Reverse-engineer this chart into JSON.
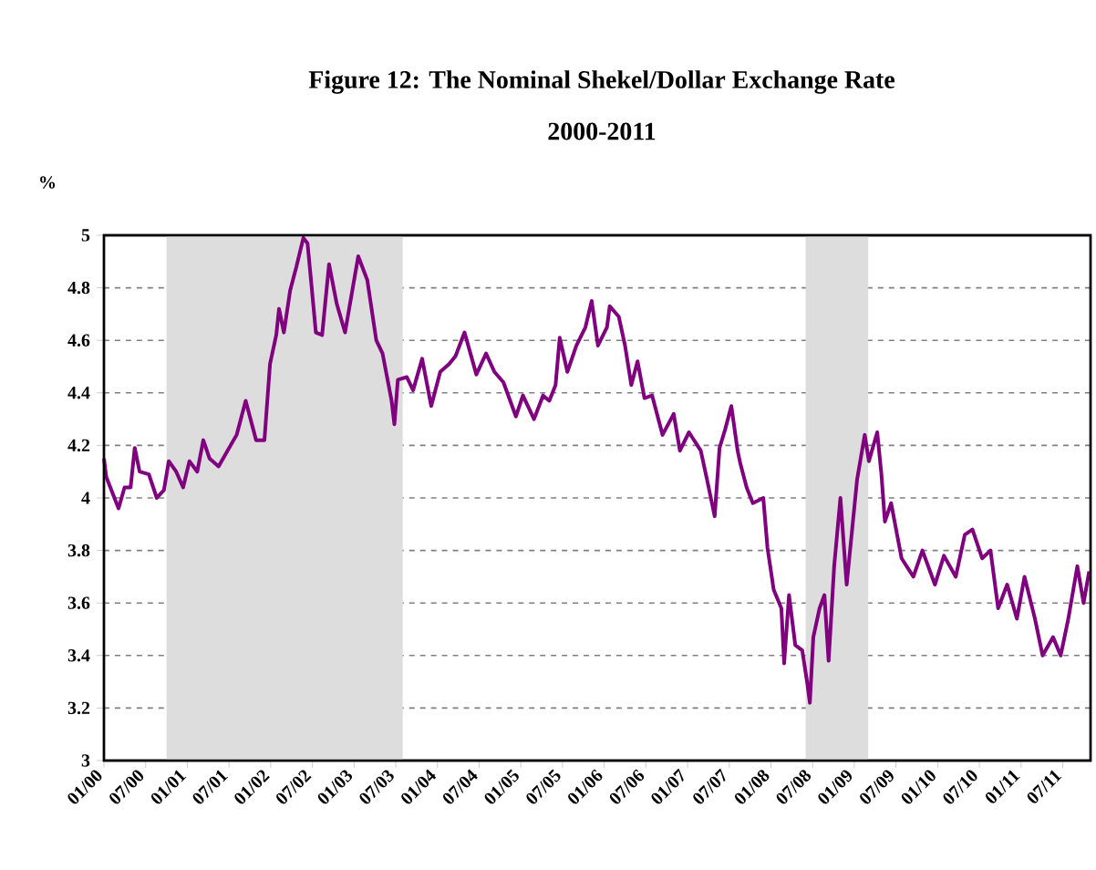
{
  "chart_data": {
    "type": "line",
    "title": "Figure 12: The Nominal Shekel/Dollar Exchange Rate",
    "subtitle": "2000-2011",
    "ylabel": "%",
    "x": [
      "2000-01-01",
      "2000-01-11",
      "2000-03-04",
      "2000-03-30",
      "2000-04-26",
      "2000-05-14",
      "2000-06-05",
      "2000-07-15",
      "2000-08-19",
      "2000-09-20",
      "2000-10-11",
      "2000-11-13",
      "2000-12-13",
      "2001-01-10",
      "2001-02-14",
      "2001-03-10",
      "2001-04-07",
      "2001-05-16",
      "2001-08-04",
      "2001-09-13",
      "2001-10-28",
      "2001-12-04",
      "2001-12-28",
      "2002-01-25",
      "2002-02-07",
      "2002-02-28",
      "2002-03-25",
      "2002-04-22",
      "2002-05-22",
      "2002-06-10",
      "2002-06-25",
      "2002-07-16",
      "2002-08-13",
      "2002-09-13",
      "2002-10-16",
      "2002-11-22",
      "2003-01-19",
      "2003-02-28",
      "2003-04-07",
      "2003-05-04",
      "2003-06-13",
      "2003-06-25",
      "2003-07-10",
      "2003-08-19",
      "2003-09-16",
      "2003-10-25",
      "2003-12-04",
      "2004-01-13",
      "2004-02-22",
      "2004-03-19",
      "2004-04-28",
      "2004-06-19",
      "2004-08-01",
      "2004-09-07",
      "2004-10-16",
      "2004-12-10",
      "2005-01-10",
      "2005-02-28",
      "2005-04-07",
      "2005-05-04",
      "2005-06-01",
      "2005-06-19",
      "2005-07-22",
      "2005-09-01",
      "2005-10-10",
      "2005-11-07",
      "2005-12-04",
      "2006-01-13",
      "2006-01-25",
      "2006-03-04",
      "2006-04-01",
      "2006-04-28",
      "2006-05-25",
      "2006-06-25",
      "2006-07-28",
      "2006-09-13",
      "2006-11-01",
      "2006-11-28",
      "2007-01-07",
      "2007-02-28",
      "2007-03-25",
      "2007-04-28",
      "2007-05-19",
      "2007-06-13",
      "2007-07-10",
      "2007-08-07",
      "2007-08-19",
      "2007-09-16",
      "2007-10-13",
      "2007-11-28",
      "2007-12-16",
      "2008-01-13",
      "2008-02-16",
      "2008-02-28",
      "2008-03-19",
      "2008-04-16",
      "2008-05-16",
      "2008-06-07",
      "2008-06-19",
      "2008-07-04",
      "2008-08-01",
      "2008-08-22",
      "2008-09-10",
      "2008-10-04",
      "2008-11-01",
      "2008-11-28",
      "2008-12-25",
      "2009-01-13",
      "2009-02-16",
      "2009-03-04",
      "2009-04-10",
      "2009-04-28",
      "2009-05-13",
      "2009-06-10",
      "2009-07-25",
      "2009-09-16",
      "2009-10-25",
      "2009-12-19",
      "2010-01-28",
      "2010-03-19",
      "2010-04-28",
      "2010-06-01",
      "2010-07-13",
      "2010-08-19",
      "2010-09-22",
      "2010-11-01",
      "2010-12-13",
      "2011-01-16",
      "2011-03-01",
      "2011-04-04",
      "2011-05-19",
      "2011-06-22",
      "2011-07-25",
      "2011-09-04",
      "2011-10-01",
      "2011-10-25"
    ],
    "series": [
      {
        "color": "#800080",
        "values": [
          4.15,
          4.08,
          3.96,
          4.04,
          4.04,
          4.19,
          4.1,
          4.09,
          4.0,
          4.03,
          4.14,
          4.1,
          4.04,
          4.14,
          4.1,
          4.22,
          4.15,
          4.12,
          4.24,
          4.37,
          4.22,
          4.22,
          4.51,
          4.62,
          4.72,
          4.63,
          4.79,
          4.88,
          4.99,
          4.97,
          4.83,
          4.63,
          4.62,
          4.89,
          4.74,
          4.63,
          4.92,
          4.83,
          4.6,
          4.55,
          4.37,
          4.28,
          4.45,
          4.46,
          4.41,
          4.53,
          4.35,
          4.48,
          4.51,
          4.54,
          4.63,
          4.47,
          4.55,
          4.48,
          4.44,
          4.31,
          4.39,
          4.3,
          4.39,
          4.37,
          4.43,
          4.61,
          4.48,
          4.58,
          4.65,
          4.75,
          4.58,
          4.65,
          4.73,
          4.69,
          4.58,
          4.43,
          4.52,
          4.38,
          4.39,
          4.24,
          4.32,
          4.18,
          4.25,
          4.18,
          4.07,
          3.93,
          4.19,
          4.26,
          4.35,
          4.18,
          4.13,
          4.04,
          3.98,
          4.0,
          3.81,
          3.65,
          3.58,
          3.37,
          3.63,
          3.44,
          3.42,
          3.3,
          3.22,
          3.47,
          3.58,
          3.63,
          3.38,
          3.74,
          4.0,
          3.67,
          3.91,
          4.07,
          4.24,
          4.14,
          4.25,
          4.09,
          3.91,
          3.98,
          3.77,
          3.7,
          3.8,
          3.67,
          3.78,
          3.7,
          3.86,
          3.88,
          3.77,
          3.8,
          3.58,
          3.67,
          3.54,
          3.7,
          3.54,
          3.4,
          3.47,
          3.4,
          3.54,
          3.74,
          3.6,
          3.72
        ]
      }
    ],
    "xlim": [
      "2000-01",
      "2011-11"
    ],
    "xticks": [
      {
        "value": "2000-01",
        "label": "01/00"
      },
      {
        "value": "2000-07",
        "label": "07/00"
      },
      {
        "value": "2001-01",
        "label": "01/01"
      },
      {
        "value": "2001-07",
        "label": "07/01"
      },
      {
        "value": "2002-01",
        "label": "01/02"
      },
      {
        "value": "2002-07",
        "label": "07/02"
      },
      {
        "value": "2003-01",
        "label": "01/03"
      },
      {
        "value": "2003-07",
        "label": "07/03"
      },
      {
        "value": "2004-01",
        "label": "01/04"
      },
      {
        "value": "2004-07",
        "label": "07/04"
      },
      {
        "value": "2005-01",
        "label": "01/05"
      },
      {
        "value": "2005-07",
        "label": "07/05"
      },
      {
        "value": "2006-01",
        "label": "01/06"
      },
      {
        "value": "2006-07",
        "label": "07/06"
      },
      {
        "value": "2007-01",
        "label": "01/07"
      },
      {
        "value": "2007-07",
        "label": "07/07"
      },
      {
        "value": "2008-01",
        "label": "01/08"
      },
      {
        "value": "2008-07",
        "label": "07/08"
      },
      {
        "value": "2009-01",
        "label": "01/09"
      },
      {
        "value": "2009-07",
        "label": "07/09"
      },
      {
        "value": "2010-01",
        "label": "01/10"
      },
      {
        "value": "2010-07",
        "label": "07/10"
      },
      {
        "value": "2011-01",
        "label": "01/11"
      },
      {
        "value": "2011-07",
        "label": "07/11"
      }
    ],
    "ylim": [
      3,
      5
    ],
    "yticks": [
      3,
      3.2,
      3.4,
      3.6,
      3.8,
      4,
      4.2,
      4.4,
      4.6,
      4.8,
      5
    ],
    "bands": [
      {
        "axis": "x",
        "from": "2000-10",
        "to": "2003-08",
        "color": "#dddddd"
      },
      {
        "axis": "x",
        "from": "2008-06",
        "to": "2009-03",
        "color": "#dddddd"
      }
    ],
    "grid": "y",
    "line_style": "solid"
  }
}
